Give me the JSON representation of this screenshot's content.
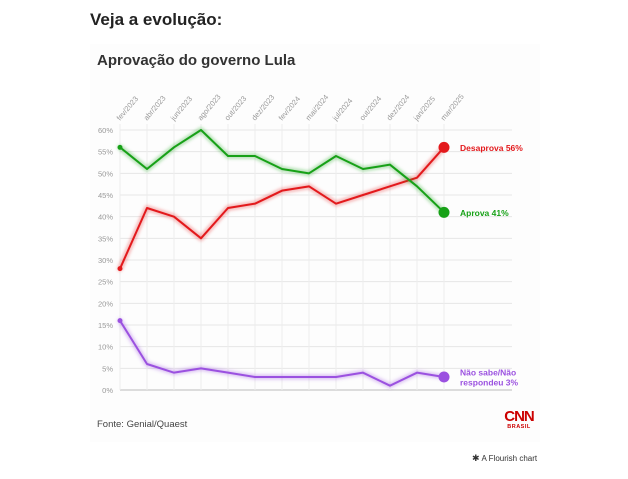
{
  "page": {
    "heading": "Veja a evolução:"
  },
  "chart_data": {
    "type": "line",
    "title": "Aprovação do governo Lula",
    "categories": [
      "fev/2023",
      "abr/2023",
      "jun/2023",
      "ago/2023",
      "out/2023",
      "dez/2023",
      "fev/2024",
      "mai/2024",
      "jul/2024",
      "out/2024",
      "dez/2024",
      "jan/2025",
      "mar/2025"
    ],
    "yticks": [
      "60%",
      "55%",
      "50%",
      "45%",
      "40%",
      "35%",
      "30%",
      "25%",
      "20%",
      "15%",
      "10%",
      "5%",
      "0%"
    ],
    "ylim": [
      0,
      60
    ],
    "grid": true,
    "series": [
      {
        "name": "Desaprova",
        "end_label": "Desaprova 56%",
        "color": "#e3191c",
        "values": [
          28,
          42,
          40,
          35,
          42,
          43,
          46,
          47,
          43,
          45,
          47,
          49,
          56
        ]
      },
      {
        "name": "Aprova",
        "end_label": "Aprova 41%",
        "color": "#17a117",
        "values": [
          56,
          51,
          56,
          60,
          54,
          54,
          51,
          50,
          54,
          51,
          52,
          47,
          41
        ]
      },
      {
        "name": "Não sabe/Não respondeu",
        "end_label": [
          "Não sabe/Não",
          "respondeu 3%"
        ],
        "color": "#9b51e0",
        "values": [
          16,
          6,
          4,
          5,
          4,
          3,
          3,
          3,
          3,
          4,
          1,
          4,
          3
        ]
      }
    ]
  },
  "footer": {
    "source": "Fonte: Genial/Quaest",
    "logo_word": "CNN",
    "logo_sub": "BRASIL",
    "credit": "A Flourish chart",
    "credit_icon": "asterisk-icon"
  }
}
